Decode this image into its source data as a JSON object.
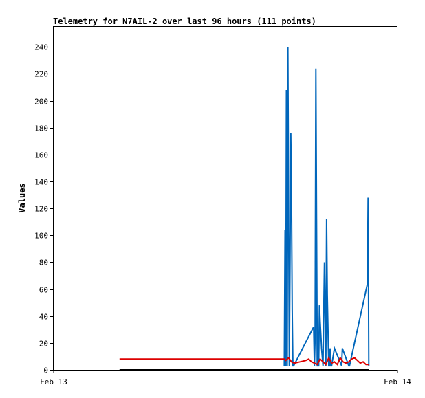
{
  "chart_data": {
    "type": "line",
    "title": "Telemetry for N7AIL-2 over last 96 hours (111 points)",
    "xlabel": "",
    "ylabel": "Values",
    "x_tick_labels": [
      "Feb 13",
      "Feb 14"
    ],
    "xlim": [
      0,
      24
    ],
    "ylim": [
      0,
      255
    ],
    "y_ticks": [
      0,
      20,
      40,
      60,
      80,
      100,
      120,
      140,
      160,
      180,
      200,
      220,
      240
    ],
    "grid": false,
    "legend": "none",
    "series": [
      {
        "color": "#0066bb",
        "x": [
          16.1,
          16.15,
          16.2,
          16.25,
          16.3,
          16.35,
          16.4,
          16.45,
          16.5,
          16.55,
          16.6,
          16.65,
          16.7,
          16.75,
          18.15,
          18.2,
          18.25,
          18.3,
          18.35,
          18.4,
          18.5,
          18.55,
          18.6,
          18.7,
          18.8,
          18.85,
          18.9,
          19.0,
          19.05,
          19.1,
          19.2,
          19.25,
          19.3,
          19.35,
          19.4,
          19.6,
          20.1,
          20.15,
          20.6,
          20.65,
          21.9,
          21.95,
          22.0
        ],
        "values": [
          3,
          104,
          3,
          208,
          3,
          240,
          120,
          3,
          88,
          176,
          131,
          44,
          3,
          3,
          32,
          3,
          24,
          224,
          112,
          3,
          3,
          48,
          36,
          16,
          3,
          40,
          80,
          3,
          112,
          56,
          3,
          3,
          16,
          3,
          3,
          16,
          3,
          16,
          3,
          3,
          64,
          128,
          3
        ]
      },
      {
        "color": "#dd0000",
        "x": [
          4.6,
          16.1,
          16.2,
          16.4,
          16.6,
          16.8,
          17.2,
          17.6,
          17.8,
          18.0,
          18.2,
          18.4,
          18.6,
          18.8,
          19.0,
          19.2,
          19.4,
          19.6,
          19.8,
          20.0,
          20.2,
          20.4,
          20.6,
          20.8,
          21.0,
          21.2,
          21.4,
          21.6,
          21.8,
          22.0
        ],
        "values": [
          8,
          8,
          7,
          9,
          6,
          5,
          6,
          7,
          8,
          6,
          5,
          4,
          8,
          6,
          4,
          9,
          5,
          6,
          4,
          9,
          6,
          5,
          6,
          8,
          9,
          7,
          5,
          6,
          4,
          4
        ]
      },
      {
        "color": "#000000",
        "x": [
          4.6,
          22.0
        ],
        "values": [
          0,
          0
        ]
      }
    ]
  }
}
